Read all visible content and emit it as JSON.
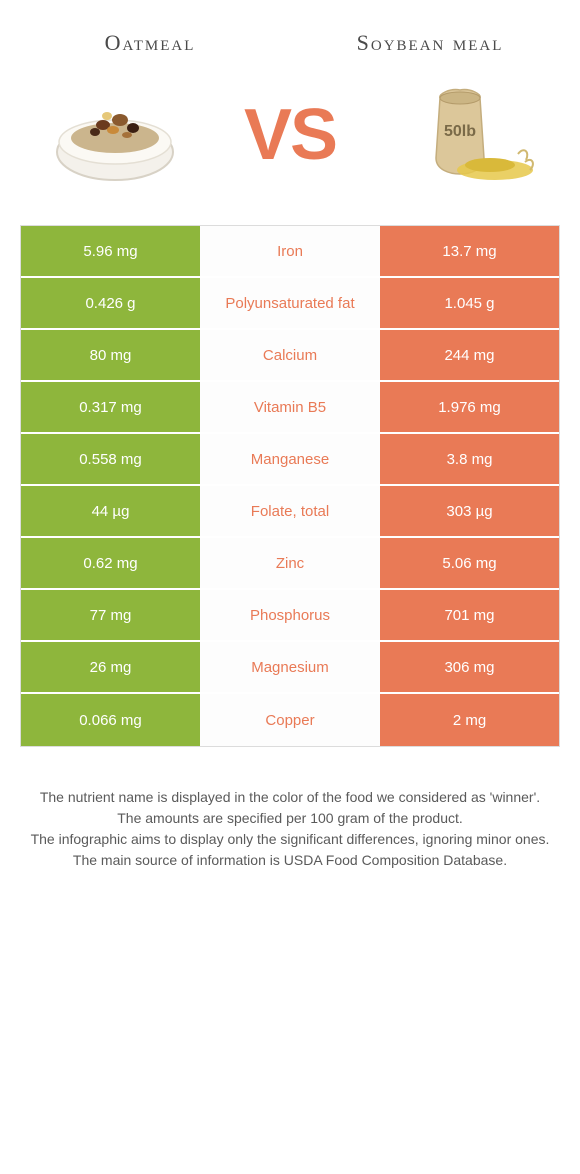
{
  "colors": {
    "left": "#8eb63c",
    "right": "#e97a56",
    "background": "#ffffff",
    "text_dark": "#4a4a4a",
    "border": "#dcdcdc"
  },
  "header": {
    "left_name": "Oatmeal",
    "right_name": "Soybean meal",
    "vs_text": "VS"
  },
  "rows": [
    {
      "left": "5.96 mg",
      "label": "Iron",
      "right": "13.7 mg",
      "winner": "right"
    },
    {
      "left": "0.426 g",
      "label": "Polyunsaturated fat",
      "right": "1.045 g",
      "winner": "right"
    },
    {
      "left": "80 mg",
      "label": "Calcium",
      "right": "244 mg",
      "winner": "right"
    },
    {
      "left": "0.317 mg",
      "label": "Vitamin B5",
      "right": "1.976 mg",
      "winner": "right"
    },
    {
      "left": "0.558 mg",
      "label": "Manganese",
      "right": "3.8 mg",
      "winner": "right"
    },
    {
      "left": "44 µg",
      "label": "Folate, total",
      "right": "303 µg",
      "winner": "right"
    },
    {
      "left": "0.62 mg",
      "label": "Zinc",
      "right": "5.06 mg",
      "winner": "right"
    },
    {
      "left": "77 mg",
      "label": "Phosphorus",
      "right": "701 mg",
      "winner": "right"
    },
    {
      "left": "26 mg",
      "label": "Magnesium",
      "right": "306 mg",
      "winner": "right"
    },
    {
      "left": "0.066 mg",
      "label": "Copper",
      "right": "2 mg",
      "winner": "right"
    }
  ],
  "footnotes": [
    "The nutrient name is displayed in the color of the food we considered as 'winner'.",
    "The amounts are specified per 100 gram of the product.",
    "The infographic aims to display only the significant differences, ignoring minor ones.",
    "The main source of information is USDA Food Composition Database."
  ],
  "icons": {
    "left_image_label": "oatmeal-bowl",
    "right_image_label": "soybean-sack-50lb"
  }
}
